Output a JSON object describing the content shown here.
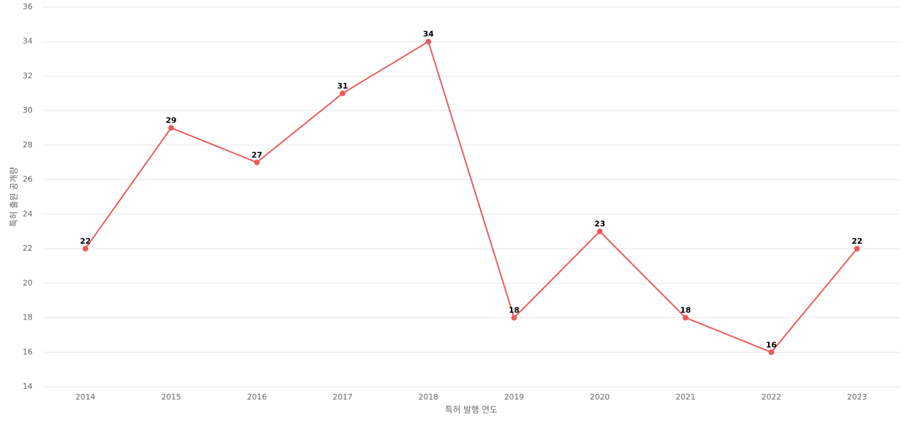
{
  "chart_data": {
    "type": "line",
    "x_label": "특허 발행 연도",
    "y_label": "특허 출원 공개량",
    "categories": [
      "2014",
      "2015",
      "2016",
      "2017",
      "2018",
      "2019",
      "2020",
      "2021",
      "2022",
      "2023"
    ],
    "series": [
      {
        "name": "특허 출원 공개량",
        "color": "#eb5a5a",
        "values": [
          22,
          29,
          27,
          31,
          34,
          18,
          23,
          18,
          16,
          22
        ]
      }
    ],
    "ylim": [
      14,
      36
    ],
    "yticks": [
      14,
      16,
      18,
      20,
      22,
      24,
      26,
      28,
      30,
      32,
      34,
      36
    ],
    "grid": true
  }
}
